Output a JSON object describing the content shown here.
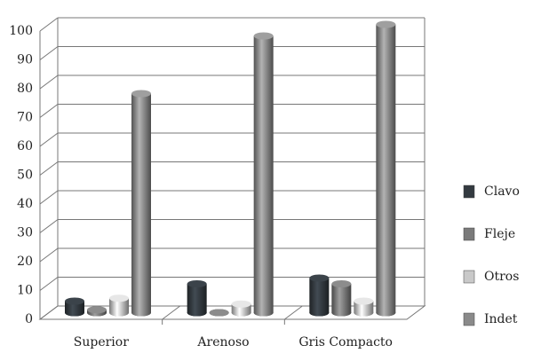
{
  "chart_data": {
    "type": "bar3d",
    "categories": [
      "Superior",
      "Arenoso",
      "Gris Compacto"
    ],
    "series": [
      {
        "name": "Clavo",
        "color": "#333a40",
        "values": [
          4,
          10,
          12
        ]
      },
      {
        "name": "Fleje",
        "color": "#7a7a7a",
        "values": [
          1,
          0,
          10
        ]
      },
      {
        "name": "Otros",
        "color": "#c9c9c9",
        "values": [
          5,
          3,
          4
        ]
      },
      {
        "name": "Indet",
        "color": "#8a8a8a",
        "values": [
          76,
          96,
          100
        ]
      }
    ],
    "ylim": [
      0,
      100
    ],
    "yticks": [
      0,
      10,
      20,
      30,
      40,
      50,
      60,
      70,
      80,
      90,
      100
    ],
    "grid": true,
    "legend": "right"
  }
}
